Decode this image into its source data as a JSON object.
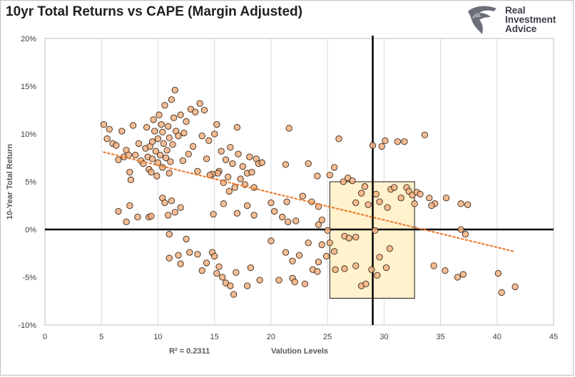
{
  "title": "10yr Total Returns vs CAPE (Margin Adjusted)",
  "logo": {
    "icon": "eagle-head-icon",
    "lines": [
      "Real",
      "Investment",
      "Advice"
    ]
  },
  "chart_data": {
    "type": "scatter",
    "title": "10yr Total Returns vs CAPE (Margin Adjusted)",
    "xlabel": "Valution Levels",
    "ylabel": "10-Year Total Return",
    "xlim": [
      0,
      45
    ],
    "ylim": [
      -10,
      20
    ],
    "x_ticks": [
      0,
      5,
      10,
      15,
      20,
      25,
      30,
      35,
      40,
      45
    ],
    "y_ticks": [
      -10,
      -5,
      0,
      5,
      10,
      15,
      20
    ],
    "y_tick_labels": [
      "-10%",
      "-5%",
      "0%",
      "5%",
      "10%",
      "15%",
      "20%"
    ],
    "grid": "vertical",
    "annotation": "R² = 0.2311",
    "point_color": "#f4b183",
    "point_edge": "#3a2a1a",
    "trend_color": "#ed7d31",
    "box_color": "#fff2cc",
    "trendline": {
      "x": [
        5.2,
        41.5
      ],
      "y": [
        8.1,
        -2.3
      ]
    },
    "highlight_box": {
      "x": [
        25.2,
        32.7
      ],
      "y": [
        -7.2,
        5.0
      ]
    },
    "crosshair": {
      "x": 29.0,
      "y": 0
    },
    "points": [
      [
        5.2,
        11.0
      ],
      [
        5.5,
        9.5
      ],
      [
        5.7,
        10.5
      ],
      [
        6.0,
        9.0
      ],
      [
        6.3,
        8.8
      ],
      [
        6.5,
        7.3
      ],
      [
        6.8,
        10.3
      ],
      [
        7.0,
        7.6
      ],
      [
        7.2,
        8.3
      ],
      [
        7.4,
        7.8
      ],
      [
        7.5,
        6.0
      ],
      [
        7.6,
        5.2
      ],
      [
        7.8,
        10.9
      ],
      [
        8.0,
        7.8
      ],
      [
        8.3,
        9.0
      ],
      [
        8.5,
        7.2
      ],
      [
        8.7,
        6.9
      ],
      [
        8.9,
        8.5
      ],
      [
        9.0,
        10.7
      ],
      [
        9.1,
        7.6
      ],
      [
        9.2,
        6.3
      ],
      [
        9.3,
        8.7
      ],
      [
        9.4,
        6.0
      ],
      [
        9.5,
        7.4
      ],
      [
        9.5,
        9.2
      ],
      [
        9.6,
        11.5
      ],
      [
        9.7,
        10.3
      ],
      [
        9.8,
        8.2
      ],
      [
        9.9,
        5.6
      ],
      [
        10.0,
        7.0
      ],
      [
        10.0,
        9.5
      ],
      [
        10.1,
        12.0
      ],
      [
        10.2,
        7.8
      ],
      [
        10.3,
        11.0
      ],
      [
        10.4,
        6.5
      ],
      [
        10.4,
        10.2
      ],
      [
        10.5,
        9.0
      ],
      [
        10.6,
        13.0
      ],
      [
        10.7,
        7.5
      ],
      [
        10.8,
        8.3
      ],
      [
        10.9,
        10.8
      ],
      [
        11.0,
        5.9
      ],
      [
        11.0,
        9.6
      ],
      [
        11.1,
        7.1
      ],
      [
        11.2,
        13.6
      ],
      [
        11.3,
        8.9
      ],
      [
        11.4,
        11.7
      ],
      [
        11.5,
        14.6
      ],
      [
        11.6,
        10.3
      ],
      [
        11.8,
        9.8
      ],
      [
        12.0,
        12.0
      ],
      [
        12.2,
        7.2
      ],
      [
        12.3,
        10.1
      ],
      [
        12.5,
        11.3
      ],
      [
        12.7,
        7.9
      ],
      [
        12.9,
        12.6
      ],
      [
        13.1,
        8.7
      ],
      [
        13.3,
        12.3
      ],
      [
        13.5,
        6.1
      ],
      [
        13.7,
        13.2
      ],
      [
        13.9,
        9.8
      ],
      [
        14.1,
        12.5
      ],
      [
        14.3,
        7.4
      ],
      [
        14.5,
        9.3
      ],
      [
        14.8,
        5.8
      ],
      [
        15.0,
        10.0
      ],
      [
        15.2,
        11.0
      ],
      [
        15.4,
        6.1
      ],
      [
        15.6,
        8.2
      ],
      [
        15.8,
        4.9
      ],
      [
        16.0,
        7.3
      ],
      [
        16.2,
        5.5
      ],
      [
        16.4,
        8.6
      ],
      [
        16.6,
        6.9
      ],
      [
        16.8,
        4.4
      ],
      [
        17.0,
        10.7
      ],
      [
        17.1,
        7.9
      ],
      [
        17.3,
        5.3
      ],
      [
        17.5,
        6.6
      ],
      [
        17.7,
        4.7
      ],
      [
        17.9,
        5.9
      ],
      [
        18.1,
        7.6
      ],
      [
        18.3,
        6.0
      ],
      [
        18.5,
        4.4
      ],
      [
        18.7,
        7.4
      ],
      [
        18.9,
        6.9
      ],
      [
        19.2,
        7.0
      ],
      [
        14.6,
        5.7
      ],
      [
        15.3,
        5.9
      ],
      [
        16.3,
        4.0
      ],
      [
        6.5,
        1.9
      ],
      [
        7.5,
        2.5
      ],
      [
        8.2,
        1.3
      ],
      [
        7.2,
        0.8
      ],
      [
        9.2,
        1.3
      ],
      [
        9.4,
        1.4
      ],
      [
        10.4,
        3.3
      ],
      [
        10.9,
        1.5
      ],
      [
        10.6,
        2.8
      ],
      [
        11.2,
        3.0
      ],
      [
        11.0,
        -0.5
      ],
      [
        11.5,
        1.8
      ],
      [
        12.0,
        2.3
      ],
      [
        12.5,
        -1.0
      ],
      [
        11.0,
        -3.0
      ],
      [
        11.8,
        -2.7
      ],
      [
        12.0,
        -3.6
      ],
      [
        12.8,
        -2.4
      ],
      [
        13.5,
        -2.6
      ],
      [
        13.9,
        -4.3
      ],
      [
        14.3,
        -3.5
      ],
      [
        14.8,
        -2.4
      ],
      [
        15.0,
        -2.8
      ],
      [
        15.2,
        -4.6
      ],
      [
        15.4,
        -3.9
      ],
      [
        15.7,
        -5.0
      ],
      [
        16.0,
        -5.6
      ],
      [
        16.4,
        -5.9
      ],
      [
        16.7,
        -6.8
      ],
      [
        16.9,
        -4.5
      ],
      [
        17.9,
        -5.9
      ],
      [
        18.2,
        -4.0
      ],
      [
        19.0,
        -5.3
      ],
      [
        20.0,
        -1.2
      ],
      [
        20.7,
        -5.3
      ],
      [
        21.3,
        -2.4
      ],
      [
        21.9,
        -3.3
      ],
      [
        21.9,
        -5.1
      ],
      [
        22.1,
        -5.5
      ],
      [
        22.5,
        -2.7
      ],
      [
        23.0,
        -5.7
      ],
      [
        23.7,
        -4.2
      ],
      [
        24.2,
        -3.4
      ],
      [
        23.3,
        -1.4
      ],
      [
        24.1,
        -4.4
      ],
      [
        24.5,
        -1.6
      ],
      [
        24.9,
        -2.8
      ],
      [
        14.9,
        1.6
      ],
      [
        15.8,
        2.7
      ],
      [
        17.0,
        1.7
      ],
      [
        17.9,
        2.5
      ],
      [
        18.5,
        1.5
      ],
      [
        20.3,
        1.9
      ],
      [
        21.0,
        1.3
      ],
      [
        21.5,
        0.8
      ],
      [
        22.2,
        0.9
      ],
      [
        24.2,
        0.5
      ],
      [
        25.0,
        -0.1
      ],
      [
        20.0,
        2.8
      ],
      [
        21.4,
        2.9
      ],
      [
        22.8,
        3.5
      ],
      [
        23.6,
        2.9
      ],
      [
        24.2,
        2.4
      ],
      [
        24.5,
        1.0
      ],
      [
        21.6,
        10.6
      ],
      [
        21.3,
        6.8
      ],
      [
        23.3,
        6.9
      ],
      [
        24.1,
        5.6
      ],
      [
        25.2,
        5.7
      ],
      [
        25.6,
        6.5
      ],
      [
        26.0,
        9.5
      ],
      [
        26.4,
        5.0
      ],
      [
        26.8,
        5.4
      ],
      [
        27.2,
        5.1
      ],
      [
        27.5,
        2.8
      ],
      [
        28.0,
        3.8
      ],
      [
        28.3,
        4.5
      ],
      [
        28.6,
        2.6
      ],
      [
        29.0,
        8.8
      ],
      [
        29.3,
        3.7
      ],
      [
        29.6,
        2.9
      ],
      [
        29.8,
        8.7
      ],
      [
        30.1,
        9.3
      ],
      [
        30.3,
        2.3
      ],
      [
        30.6,
        4.2
      ],
      [
        30.9,
        4.4
      ],
      [
        31.2,
        9.2
      ],
      [
        31.5,
        3.3
      ],
      [
        31.8,
        9.2
      ],
      [
        32.0,
        4.4
      ],
      [
        32.2,
        4.0
      ],
      [
        32.5,
        3.6
      ],
      [
        32.7,
        2.7
      ],
      [
        32.9,
        3.9
      ],
      [
        33.2,
        3.7
      ],
      [
        33.6,
        9.9
      ],
      [
        34.0,
        3.3
      ],
      [
        34.5,
        2.7
      ],
      [
        34.2,
        2.5
      ],
      [
        35.5,
        3.3
      ],
      [
        36.8,
        2.7
      ],
      [
        37.4,
        2.6
      ],
      [
        36.8,
        0.0
      ],
      [
        37.2,
        -0.5
      ],
      [
        25.2,
        -1.4
      ],
      [
        25.6,
        -2.3
      ],
      [
        25.7,
        -4.2
      ],
      [
        26.5,
        -0.7
      ],
      [
        26.9,
        -0.9
      ],
      [
        26.5,
        -4.1
      ],
      [
        27.5,
        -0.8
      ],
      [
        27.5,
        -3.8
      ],
      [
        28.0,
        -5.9
      ],
      [
        28.4,
        -5.7
      ],
      [
        28.9,
        -4.2
      ],
      [
        29.2,
        -0.1
      ],
      [
        29.6,
        -2.9
      ],
      [
        29.4,
        -4.8
      ],
      [
        30.2,
        -4.0
      ],
      [
        30.5,
        -2.0
      ],
      [
        34.4,
        -3.8
      ],
      [
        35.4,
        -4.3
      ],
      [
        36.5,
        -5.0
      ],
      [
        37.0,
        -4.7
      ],
      [
        40.1,
        -4.6
      ],
      [
        40.4,
        -6.6
      ],
      [
        41.6,
        -6.0
      ]
    ]
  }
}
